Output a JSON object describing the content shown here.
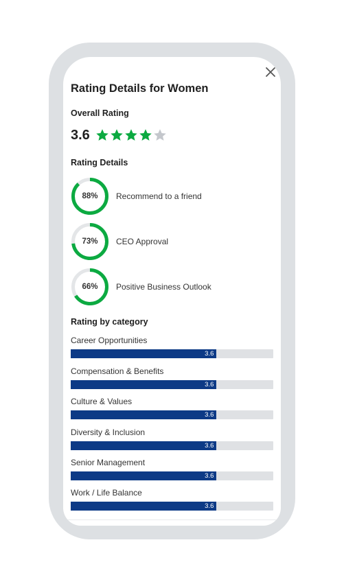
{
  "modal": {
    "title": "Rating Details for Women",
    "close_icon": "close-icon"
  },
  "overall": {
    "label": "Overall Rating",
    "score": "3.6",
    "stars_filled": 4,
    "stars_total": 5,
    "star_color": "#0caa41",
    "star_empty_color": "#c4c7cc"
  },
  "details": {
    "label": "Rating Details",
    "ring_color": "#0caa41",
    "ring_track_color": "#e4e6e8",
    "items": [
      {
        "pct_text": "88%",
        "pct": 88,
        "label": "Recommend to a friend"
      },
      {
        "pct_text": "73%",
        "pct": 73,
        "label": "CEO Approval"
      },
      {
        "pct_text": "66%",
        "pct": 66,
        "label": "Positive Business Outlook"
      }
    ]
  },
  "categories": {
    "label": "Rating by category",
    "max": 5,
    "bar_color": "#0d3a86",
    "track_color": "#dfe1e4",
    "items": [
      {
        "label": "Career Opportunities",
        "value": "3.6"
      },
      {
        "label": "Compensation & Benefits",
        "value": "3.6"
      },
      {
        "label": "Culture & Values",
        "value": "3.6"
      },
      {
        "label": "Diversity & Inclusion",
        "value": "3.6"
      },
      {
        "label": "Senior Management",
        "value": "3.6"
      },
      {
        "label": "Work / Life Balance",
        "value": "3.6"
      }
    ]
  }
}
